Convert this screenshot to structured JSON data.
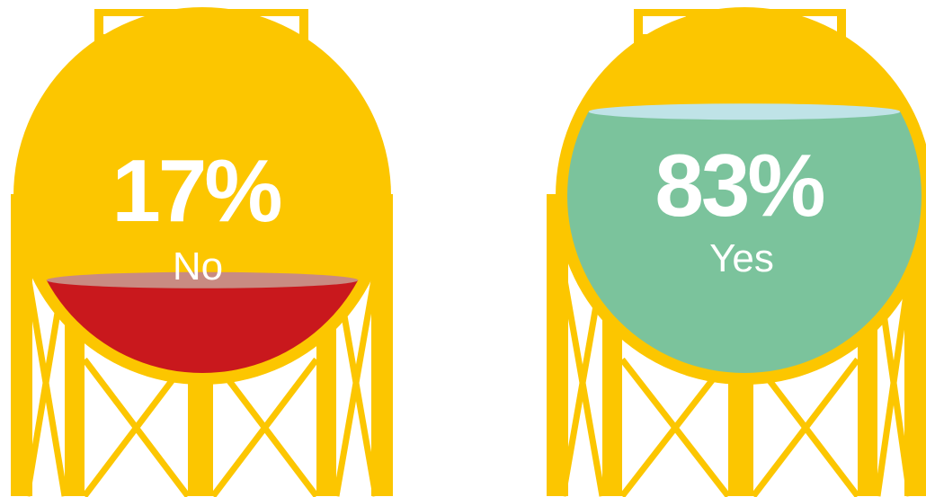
{
  "chart_data": {
    "type": "pie",
    "categories": [
      "No",
      "Yes"
    ],
    "values": [
      17,
      83
    ],
    "value_labels": [
      "17%",
      "83%"
    ],
    "colors": {
      "tank": "#fcc600",
      "No": "#c9181d",
      "No_surface": "#c98b82",
      "Yes": "#7bc39c",
      "Yes_surface": "#bfe3e7",
      "text": "#ffffff",
      "background": "#ffffff"
    }
  }
}
